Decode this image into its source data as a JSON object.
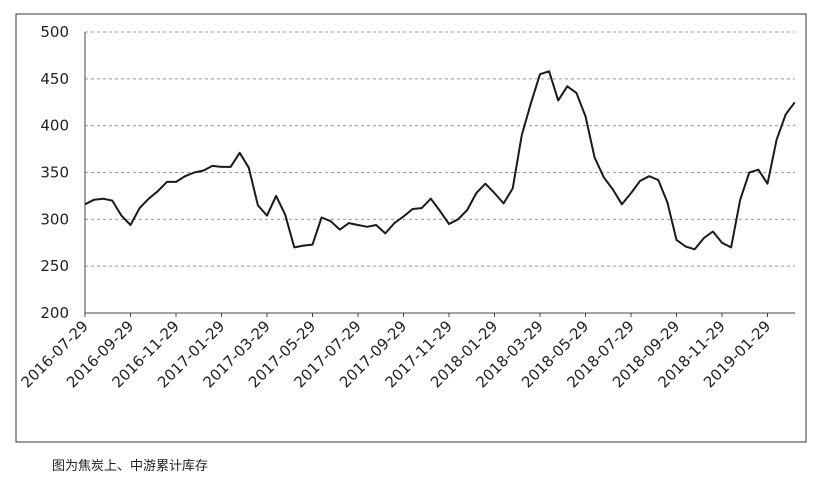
{
  "chart_data": {
    "type": "line",
    "caption": "图为焦炭上、中游累计库存",
    "categories": [
      "2016-07-29",
      null,
      null,
      null,
      null,
      "2016-09-29",
      null,
      null,
      null,
      null,
      "2016-11-29",
      null,
      null,
      null,
      null,
      "2017-01-29",
      null,
      null,
      null,
      null,
      "2017-03-29",
      null,
      null,
      null,
      null,
      "2017-05-29",
      null,
      null,
      null,
      null,
      "2017-07-29",
      null,
      null,
      null,
      null,
      "2017-09-29",
      null,
      null,
      null,
      null,
      "2017-11-29",
      null,
      null,
      null,
      null,
      "2018-01-29",
      null,
      null,
      null,
      null,
      "2018-03-29",
      null,
      null,
      null,
      null,
      "2018-05-29",
      null,
      null,
      null,
      null,
      "2018-07-29",
      null,
      null,
      null,
      null,
      "2018-09-29",
      null,
      null,
      null,
      null,
      "2018-11-29",
      null,
      null,
      null,
      null,
      "2019-01-29",
      null,
      null,
      null
    ],
    "values": [
      316,
      321,
      322,
      320,
      304,
      294,
      312,
      322,
      330,
      340,
      340,
      346,
      350,
      352,
      357,
      356,
      356,
      371,
      355,
      315,
      304,
      325,
      305,
      270,
      272,
      273,
      302,
      298,
      289,
      296,
      294,
      292,
      294,
      285,
      296,
      303,
      311,
      312,
      322,
      309,
      295,
      300,
      310,
      328,
      338,
      328,
      317,
      333,
      390,
      424,
      455,
      458,
      427,
      442,
      435,
      410,
      366,
      345,
      332,
      316,
      328,
      341,
      346,
      342,
      318,
      278,
      271,
      268,
      280,
      287,
      275,
      270,
      321,
      350,
      353,
      338,
      385,
      412,
      425
    ],
    "color": "#1a1a1a",
    "ylim": [
      200,
      500
    ],
    "yticks": [
      200,
      250,
      300,
      350,
      400,
      450,
      500
    ],
    "grid": true
  }
}
